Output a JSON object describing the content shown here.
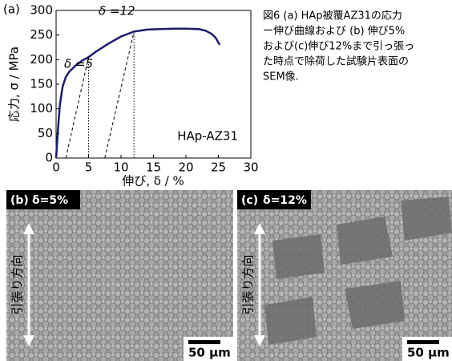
{
  "chart_data": {
    "type": "line",
    "panel_label": "(a)",
    "xlabel": "伸び, δ / %",
    "ylabel": "応力, σ / MPa",
    "xlim": [
      0,
      30
    ],
    "xticks": [
      0,
      5,
      10,
      15,
      20,
      25,
      30
    ],
    "ylim": [
      0,
      300
    ],
    "yticks": [
      0,
      50,
      100,
      150,
      200,
      250,
      300
    ],
    "series": [
      {
        "color": "#1c1c6b",
        "x": [
          0,
          0.3,
          0.6,
          1,
          1.5,
          2,
          3,
          4,
          5,
          6,
          8,
          10,
          12,
          14,
          16,
          18,
          20,
          22,
          23,
          24,
          24.6,
          25.2
        ],
        "values": [
          0,
          60,
          110,
          145,
          165,
          175,
          188,
          198,
          205,
          215,
          232,
          247,
          257,
          261,
          262,
          263,
          263,
          262,
          259,
          252,
          244,
          230
        ]
      },
      {
        "color": "#000000",
        "dash": "dashed",
        "x": [
          1.5,
          5
        ],
        "values": [
          0,
          205
        ]
      },
      {
        "color": "#000000",
        "dash": "dashed",
        "x": [
          7.5,
          12
        ],
        "values": [
          0,
          257
        ]
      },
      {
        "color": "#000000",
        "dash": "dotted",
        "x": [
          5,
          5
        ],
        "values": [
          0,
          205
        ]
      },
      {
        "color": "#000000",
        "dash": "dotted",
        "x": [
          12,
          12
        ],
        "values": [
          0,
          257
        ]
      }
    ],
    "annotations": [
      "δ =5",
      "δ =12",
      "HAp-AZ31"
    ]
  },
  "caption": [
    "図6 (a) HAp被覆AZ31の応力",
    "ー伸び曲線および (b) 伸び5%",
    "および(c)伸び12%まで引っ張っ",
    "た時点で除荷した試験片表面の",
    "SEM像."
  ],
  "panels": [
    {
      "label": "(b)",
      "condition": "δ=5%",
      "direction": "引張り方向",
      "scale_bar": "50 μm"
    },
    {
      "label": "(c)",
      "condition": "δ=12%",
      "direction": "引張り方向",
      "scale_bar": "50 μm"
    }
  ]
}
